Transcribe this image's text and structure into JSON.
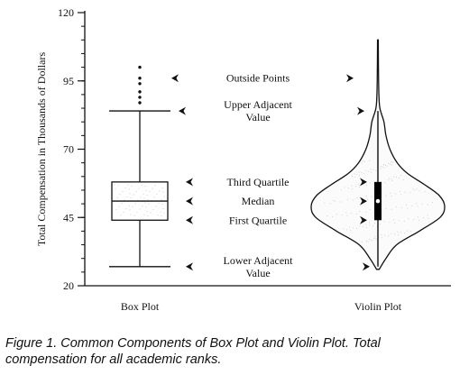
{
  "chart_data": {
    "type": "box-violin",
    "ylabel": "Total Compensation in Thousands of Dollars",
    "ylim": [
      20,
      120
    ],
    "yticks": [
      20,
      45,
      70,
      95,
      120
    ],
    "categories": [
      "Box Plot",
      "Violin Plot"
    ],
    "box_stats": {
      "lower_adjacent": 27,
      "first_quartile": 44,
      "median": 51,
      "third_quartile": 58,
      "upper_adjacent": 84,
      "outliers": [
        87,
        89,
        91,
        94,
        96,
        100
      ]
    },
    "violin_profile": [
      {
        "y": 26,
        "w": 0.02
      },
      {
        "y": 30,
        "w": 0.12
      },
      {
        "y": 35,
        "w": 0.28
      },
      {
        "y": 40,
        "w": 0.62
      },
      {
        "y": 45,
        "w": 0.93
      },
      {
        "y": 49,
        "w": 1.0
      },
      {
        "y": 53,
        "w": 0.92
      },
      {
        "y": 57,
        "w": 0.7
      },
      {
        "y": 61,
        "w": 0.45
      },
      {
        "y": 65,
        "w": 0.29
      },
      {
        "y": 70,
        "w": 0.18
      },
      {
        "y": 75,
        "w": 0.12
      },
      {
        "y": 80,
        "w": 0.09
      },
      {
        "y": 85,
        "w": 0.03
      },
      {
        "y": 90,
        "w": 0.015
      },
      {
        "y": 100,
        "w": 0.008
      },
      {
        "y": 110,
        "w": 0.006
      }
    ],
    "annotations": [
      {
        "lines": [
          "Outside Points"
        ],
        "y": 96
      },
      {
        "lines": [
          "Upper Adjacent",
          "Value"
        ],
        "y": 84
      },
      {
        "lines": [
          "Third Quartile"
        ],
        "y": 58
      },
      {
        "lines": [
          "Median"
        ],
        "y": 51
      },
      {
        "lines": [
          "First Quartile"
        ],
        "y": 44
      },
      {
        "lines": [
          "Lower Adjacent",
          "Value"
        ],
        "y": 27
      }
    ]
  },
  "caption": "Figure 1.  Common Components of Box Plot and Violin Plot. Total compensation for all academic ranks."
}
